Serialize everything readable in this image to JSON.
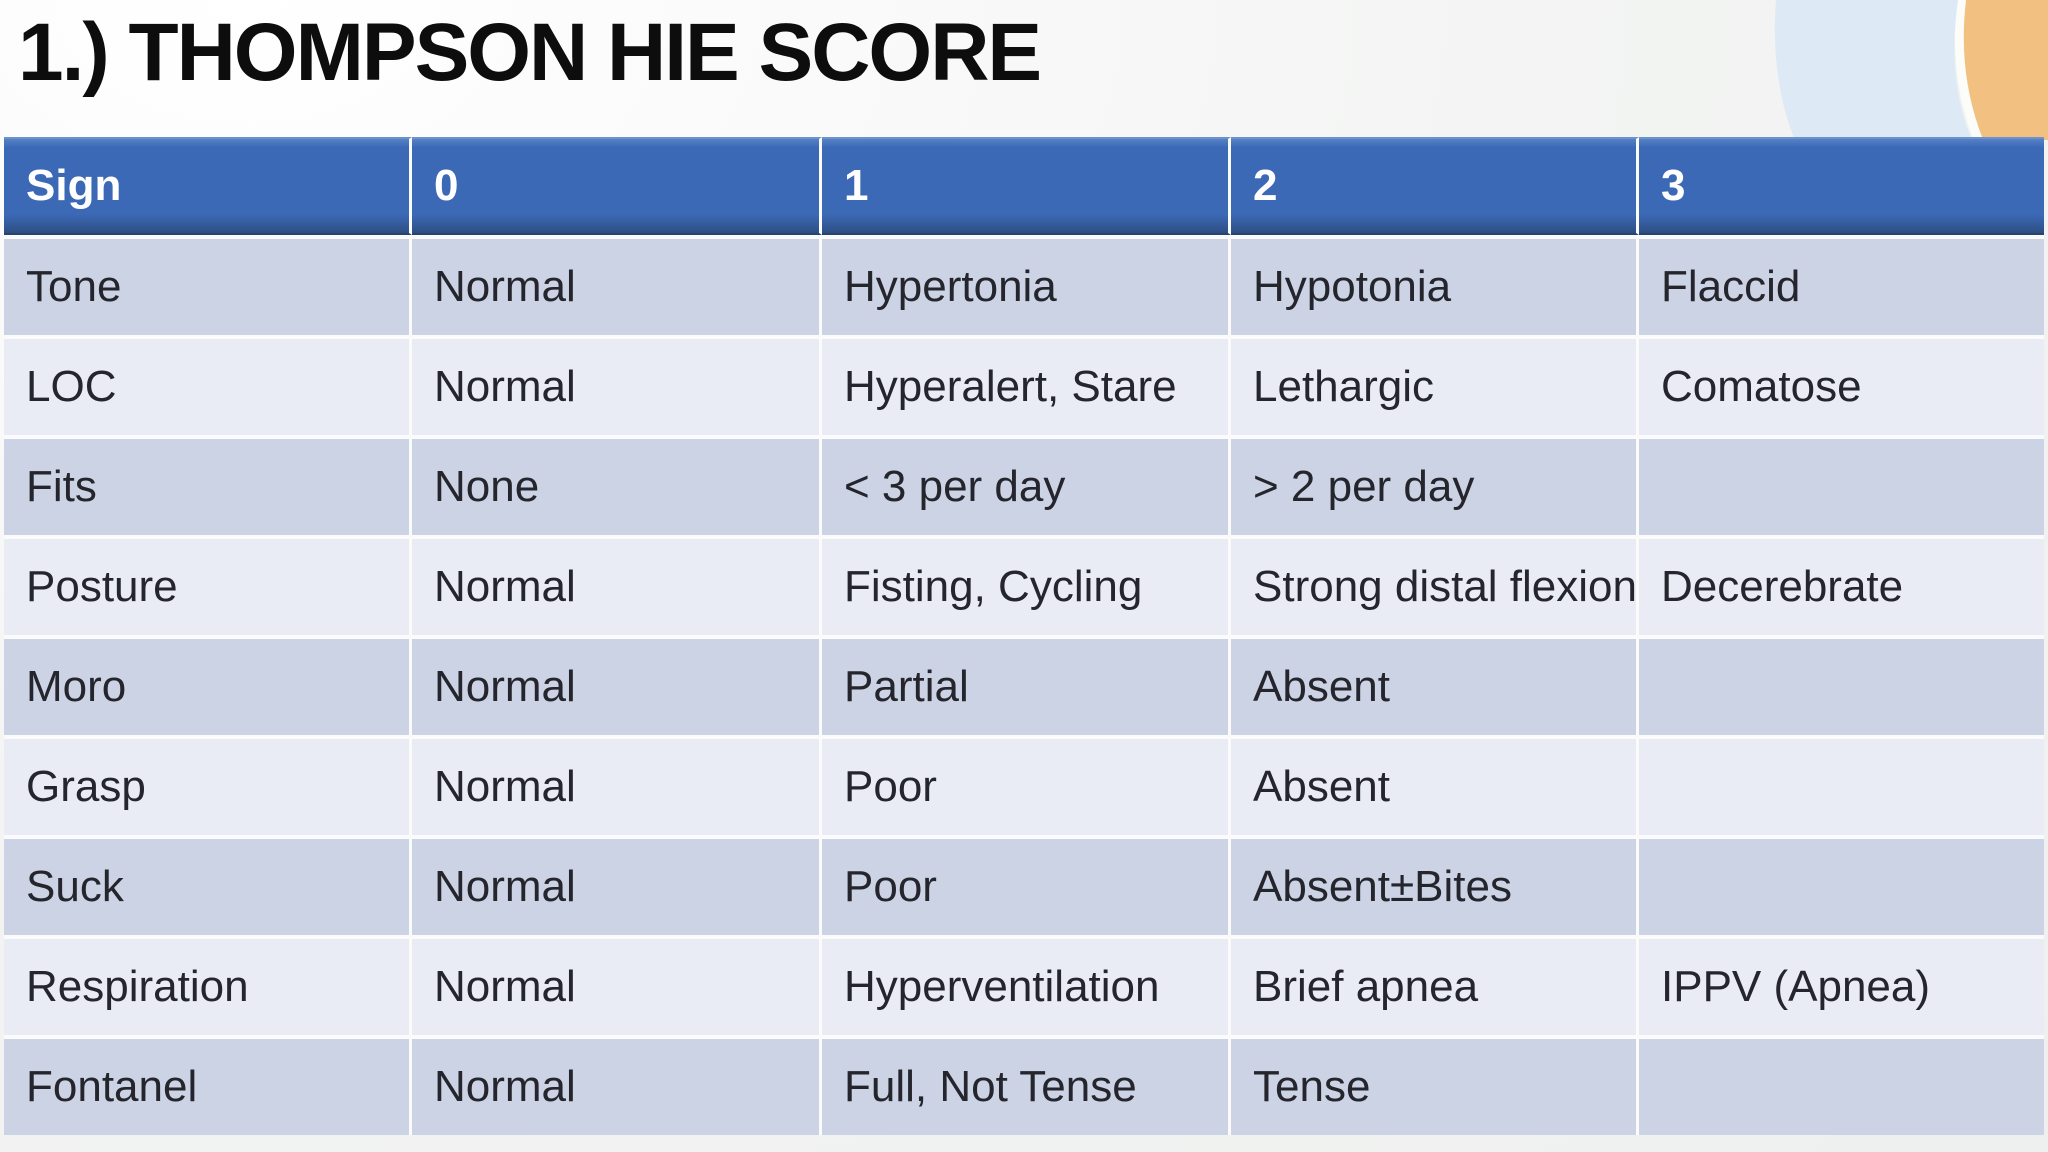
{
  "slide": {
    "title": "1.) THOMPSON HIE SCORE",
    "table": {
      "columns": [
        "Sign",
        "0",
        "1",
        "2",
        "3"
      ],
      "rows": [
        {
          "cells": [
            "Tone",
            "Normal",
            "Hypertonia",
            "Hypotonia",
            "Flaccid"
          ]
        },
        {
          "cells": [
            "LOC",
            "Normal",
            "Hyperalert, Stare",
            "Lethargic",
            "Comatose"
          ]
        },
        {
          "cells": [
            "Fits",
            "None",
            "< 3 per day",
            "> 2 per day",
            ""
          ]
        },
        {
          "cells": [
            "Posture",
            "Normal",
            "Fisting, Cycling",
            "Strong distal flexion",
            "Decerebrate"
          ]
        },
        {
          "cells": [
            "Moro",
            "Normal",
            "Partial",
            "Absent",
            ""
          ]
        },
        {
          "cells": [
            "Grasp",
            "Normal",
            "Poor",
            "Absent",
            ""
          ]
        },
        {
          "cells": [
            "Suck",
            "Normal",
            "Poor",
            "Absent±Bites",
            ""
          ]
        },
        {
          "cells": [
            "Respiration",
            "Normal",
            "Hyperventilation",
            "Brief apnea",
            "IPPV (Apnea)"
          ]
        },
        {
          "cells": [
            "Fontanel",
            "Normal",
            "Full, Not Tense",
            "Tense",
            ""
          ]
        }
      ]
    },
    "colors": {
      "header_bg": "#3c69b5",
      "header_bg_light": "#5581c6",
      "header_bg_dark": "#2d4e84",
      "header_text": "#ffffff",
      "row_odd_bg": "#ccd3e4",
      "row_even_bg": "#e9ecf4",
      "cell_text": "#25252d",
      "title_text": "#0d0d0d",
      "page_bg": "#f3f4f3",
      "divider": "#fafbfa",
      "accent_blue_band": "#dde9f4",
      "accent_orange": "#f2c181",
      "accent_separator": "#fcfcf8"
    }
  }
}
